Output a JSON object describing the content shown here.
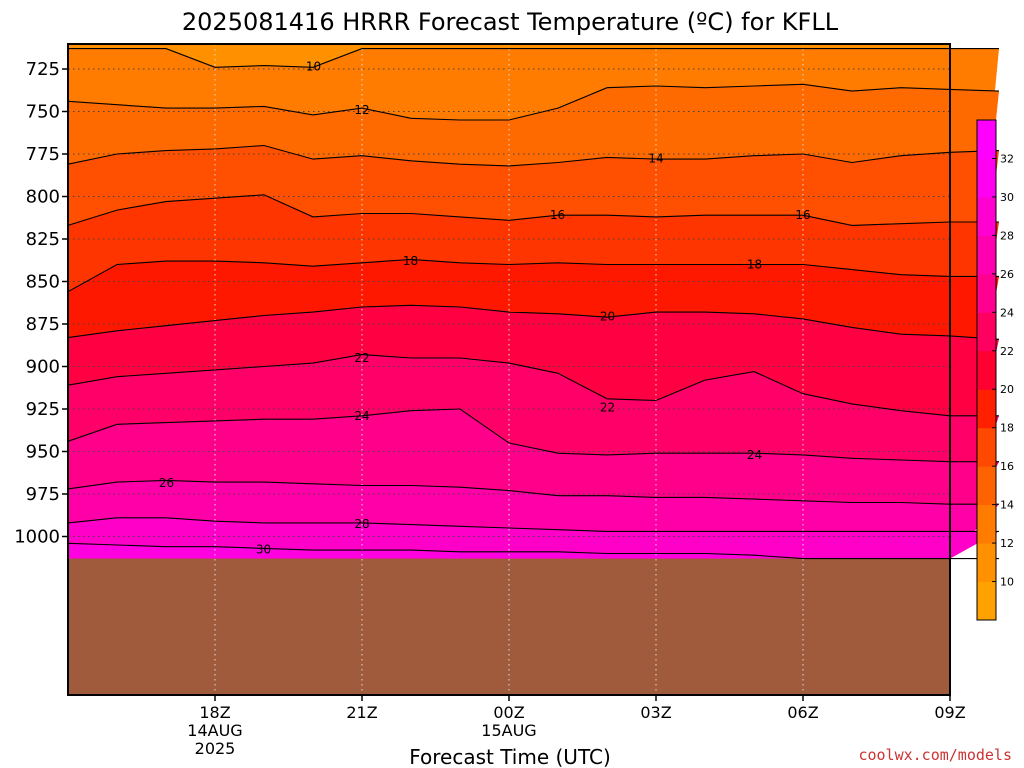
{
  "chart_data": {
    "type": "area",
    "title": "2025081416 HRRR Forecast Temperature (ºC) for KFLL",
    "xlabel": "Forecast Time (UTC)",
    "ylabel": "",
    "credit": "coolwx.com/models",
    "y_axis": {
      "reversed": true,
      "range": [
        1013,
        713
      ],
      "ticks": [
        725,
        750,
        775,
        800,
        825,
        850,
        875,
        900,
        925,
        950,
        975,
        1000
      ]
    },
    "x_axis": {
      "range": [
        -1,
        5
      ],
      "ticks": [
        {
          "x": 0,
          "lines": [
            "18Z",
            "14AUG",
            "2025"
          ]
        },
        {
          "x": 1,
          "lines": [
            "21Z"
          ]
        },
        {
          "x": 2,
          "lines": [
            "00Z",
            "15AUG"
          ]
        },
        {
          "x": 3,
          "lines": [
            "03Z"
          ]
        },
        {
          "x": 4,
          "lines": [
            "06Z"
          ]
        },
        {
          "x": 5,
          "lines": [
            "09Z"
          ]
        }
      ]
    },
    "grid": true,
    "x": [
      -1.0,
      -0.667,
      -0.333,
      0.0,
      0.333,
      0.667,
      1.0,
      1.333,
      1.667,
      2.0,
      2.333,
      2.667,
      3.0,
      3.333,
      3.667,
      4.0,
      4.333,
      4.667,
      5.0,
      5.333
    ],
    "contours": [
      {
        "level": 10,
        "pressure": [
          713,
          713,
          713,
          724,
          723,
          724,
          713,
          713,
          713,
          713,
          713,
          713,
          713,
          713,
          713,
          713,
          713,
          713,
          713,
          713
        ]
      },
      {
        "level": 12,
        "pressure": [
          744,
          746,
          748,
          748,
          747,
          752,
          748,
          754,
          755,
          755,
          748,
          736,
          735,
          736,
          735,
          734,
          738,
          736,
          737,
          738
        ]
      },
      {
        "level": 14,
        "pressure": [
          781,
          775,
          773,
          772,
          770,
          778,
          776,
          779,
          781,
          782,
          780,
          777,
          778,
          778,
          776,
          775,
          780,
          776,
          774,
          773
        ]
      },
      {
        "level": 16,
        "pressure": [
          817,
          808,
          803,
          801,
          799,
          812,
          810,
          810,
          812,
          814,
          811,
          811,
          812,
          811,
          811,
          811,
          817,
          816,
          815,
          815
        ]
      },
      {
        "level": 18,
        "pressure": [
          856,
          840,
          838,
          838,
          839,
          841,
          839,
          837,
          839,
          840,
          839,
          840,
          840,
          840,
          840,
          840,
          843,
          846,
          847,
          847
        ]
      },
      {
        "level": 20,
        "pressure": [
          883,
          879,
          876,
          873,
          870,
          868,
          865,
          864,
          865,
          868,
          869,
          871,
          868,
          868,
          869,
          872,
          877,
          881,
          882,
          884
        ]
      },
      {
        "level": 22,
        "pressure": [
          911,
          906,
          904,
          902,
          900,
          898,
          893,
          895,
          895,
          898,
          904,
          919,
          920,
          908,
          903,
          916,
          922,
          926,
          929,
          929
        ]
      },
      {
        "level": 24,
        "pressure": [
          944,
          934,
          933,
          932,
          931,
          931,
          929,
          926,
          925,
          945,
          951,
          952,
          951,
          951,
          951,
          952,
          954,
          955,
          956,
          956
        ]
      },
      {
        "level": 26,
        "pressure": [
          972,
          968,
          967,
          968,
          968,
          969,
          970,
          970,
          971,
          973,
          976,
          976,
          977,
          977,
          978,
          979,
          980,
          980,
          981,
          981
        ]
      },
      {
        "level": 28,
        "pressure": [
          992,
          989,
          989,
          991,
          992,
          992,
          992,
          993,
          994,
          995,
          996,
          997,
          997,
          997,
          997,
          997,
          997,
          997,
          997,
          997
        ]
      },
      {
        "level": 30,
        "pressure": [
          1004,
          1005,
          1006,
          1006,
          1007,
          1008,
          1008,
          1008,
          1009,
          1009,
          1009,
          1010,
          1010,
          1010,
          1011,
          1013,
          1013,
          1013,
          1013,
          1013
        ]
      }
    ],
    "contour_labels": [
      {
        "text": "10",
        "x": 0.67,
        "p": 723.5
      },
      {
        "text": "12",
        "x": 1.0,
        "p": 749
      },
      {
        "text": "14",
        "x": 3.0,
        "p": 777.5
      },
      {
        "text": "16",
        "x": 2.33,
        "p": 811
      },
      {
        "text": "16",
        "x": 4.0,
        "p": 811
      },
      {
        "text": "18",
        "x": 1.33,
        "p": 838
      },
      {
        "text": "18",
        "x": 3.67,
        "p": 840
      },
      {
        "text": "20",
        "x": 2.67,
        "p": 870.5
      },
      {
        "text": "22",
        "x": 1.0,
        "p": 895
      },
      {
        "text": "22",
        "x": 2.67,
        "p": 924
      },
      {
        "text": "24",
        "x": 1.0,
        "p": 929
      },
      {
        "text": "24",
        "x": 3.67,
        "p": 952
      },
      {
        "text": "26",
        "x": -0.33,
        "p": 968.5
      },
      {
        "text": "28",
        "x": 1.0,
        "p": 992.5
      },
      {
        "text": "30",
        "x": 0.33,
        "p": 1007.5
      }
    ],
    "colorbar": {
      "ticks": [
        10,
        12,
        14,
        16,
        18,
        20,
        22,
        24,
        26,
        28,
        30,
        32
      ],
      "colors": [
        "#ffa200",
        "#ff9000",
        "#ff7c00",
        "#ff6200",
        "#ff4800",
        "#ff2000",
        "#ff0030",
        "#ff0060",
        "#ff0090",
        "#ff00b0",
        "#ff00d0",
        "#ff00f0",
        "#ff00ff"
      ]
    },
    "fill_colors": [
      "#ff9100",
      "#ff7c00",
      "#ff6a00",
      "#ff4f00",
      "#ff3500",
      "#ff1800",
      "#ff0042",
      "#ff0068",
      "#ff008a",
      "#ff00a8",
      "#ff00c8",
      "#ff00e0"
    ],
    "surface_color": "#a05a3c"
  }
}
